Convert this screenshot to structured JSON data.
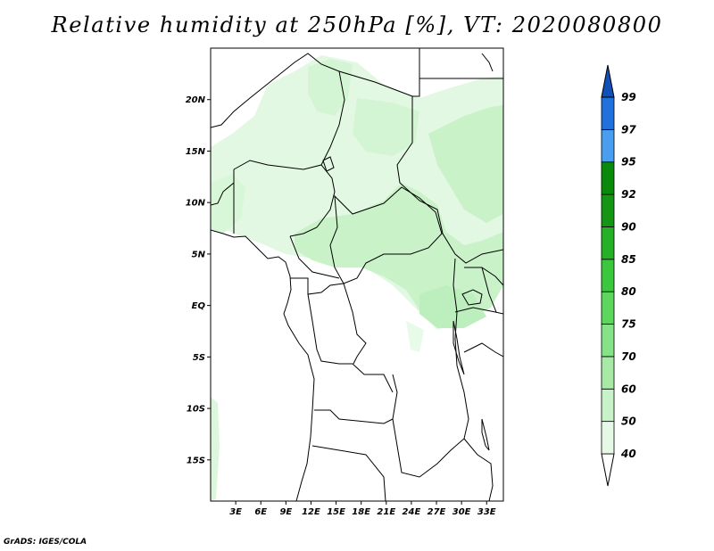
{
  "title": "Relative humidity at 250hPa [%], VT: 2020080800",
  "credit": "GrADS: IGES/COLA",
  "map": {
    "lon_range": [
      0,
      35
    ],
    "lat_range": [
      -19,
      25
    ],
    "lat_ticks": [
      {
        "value": 20,
        "label": "20N"
      },
      {
        "value": 15,
        "label": "15N"
      },
      {
        "value": 10,
        "label": "10N"
      },
      {
        "value": 5,
        "label": "5N"
      },
      {
        "value": 0,
        "label": "EQ"
      },
      {
        "value": -5,
        "label": "5S"
      },
      {
        "value": -10,
        "label": "10S"
      },
      {
        "value": -15,
        "label": "15S"
      }
    ],
    "lon_ticks": [
      {
        "value": 3,
        "label": "3E"
      },
      {
        "value": 6,
        "label": "6E"
      },
      {
        "value": 9,
        "label": "9E"
      },
      {
        "value": 12,
        "label": "12E"
      },
      {
        "value": 15,
        "label": "15E"
      },
      {
        "value": 18,
        "label": "18E"
      },
      {
        "value": 21,
        "label": "21E"
      },
      {
        "value": 24,
        "label": "24E"
      },
      {
        "value": 27,
        "label": "27E"
      },
      {
        "value": 30,
        "label": "30E"
      },
      {
        "value": 33,
        "label": "33E"
      }
    ]
  },
  "colorbar": {
    "levels": [
      "40",
      "50",
      "60",
      "70",
      "75",
      "80",
      "85",
      "90",
      "92",
      "95",
      "97",
      "99"
    ],
    "colors": [
      "#ffffff",
      "#e6f9e6",
      "#c8f3c8",
      "#a6eaa6",
      "#86e286",
      "#5cd65c",
      "#3cc83c",
      "#26b026",
      "#149614",
      "#0a8a0a",
      "#4a9ef0",
      "#2070dd",
      "#1050b8"
    ]
  },
  "palette": {
    "humidity_40": "#e8fae8",
    "humidity_50": "#d0f5d0",
    "humidity_60": "#b8efb8",
    "border": "#000000"
  }
}
